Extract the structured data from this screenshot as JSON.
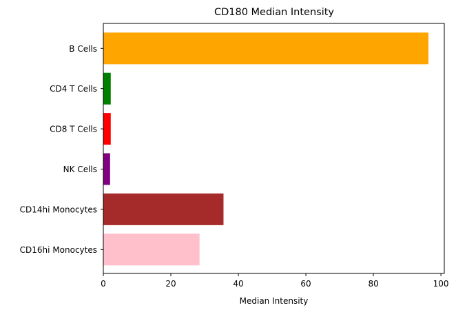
{
  "chart_data": {
    "type": "bar",
    "orientation": "horizontal",
    "title": "CD180 Median Intensity",
    "xlabel": "Median Intensity",
    "ylabel": "",
    "xlim": [
      0,
      101
    ],
    "xticks": [
      0,
      20,
      40,
      60,
      80,
      100
    ],
    "categories": [
      "B Cells",
      "CD4 T Cells",
      "CD8 T Cells",
      "NK Cells",
      "CD14hi Monocytes",
      "CD16hi Monocytes"
    ],
    "values": [
      96.3,
      2.2,
      2.2,
      2.0,
      35.6,
      28.5
    ],
    "colors": [
      "#ffa500",
      "#008000",
      "#ff0000",
      "#800080",
      "#a52a2a",
      "#ffc0cb"
    ],
    "grid": false,
    "legend": "none"
  }
}
